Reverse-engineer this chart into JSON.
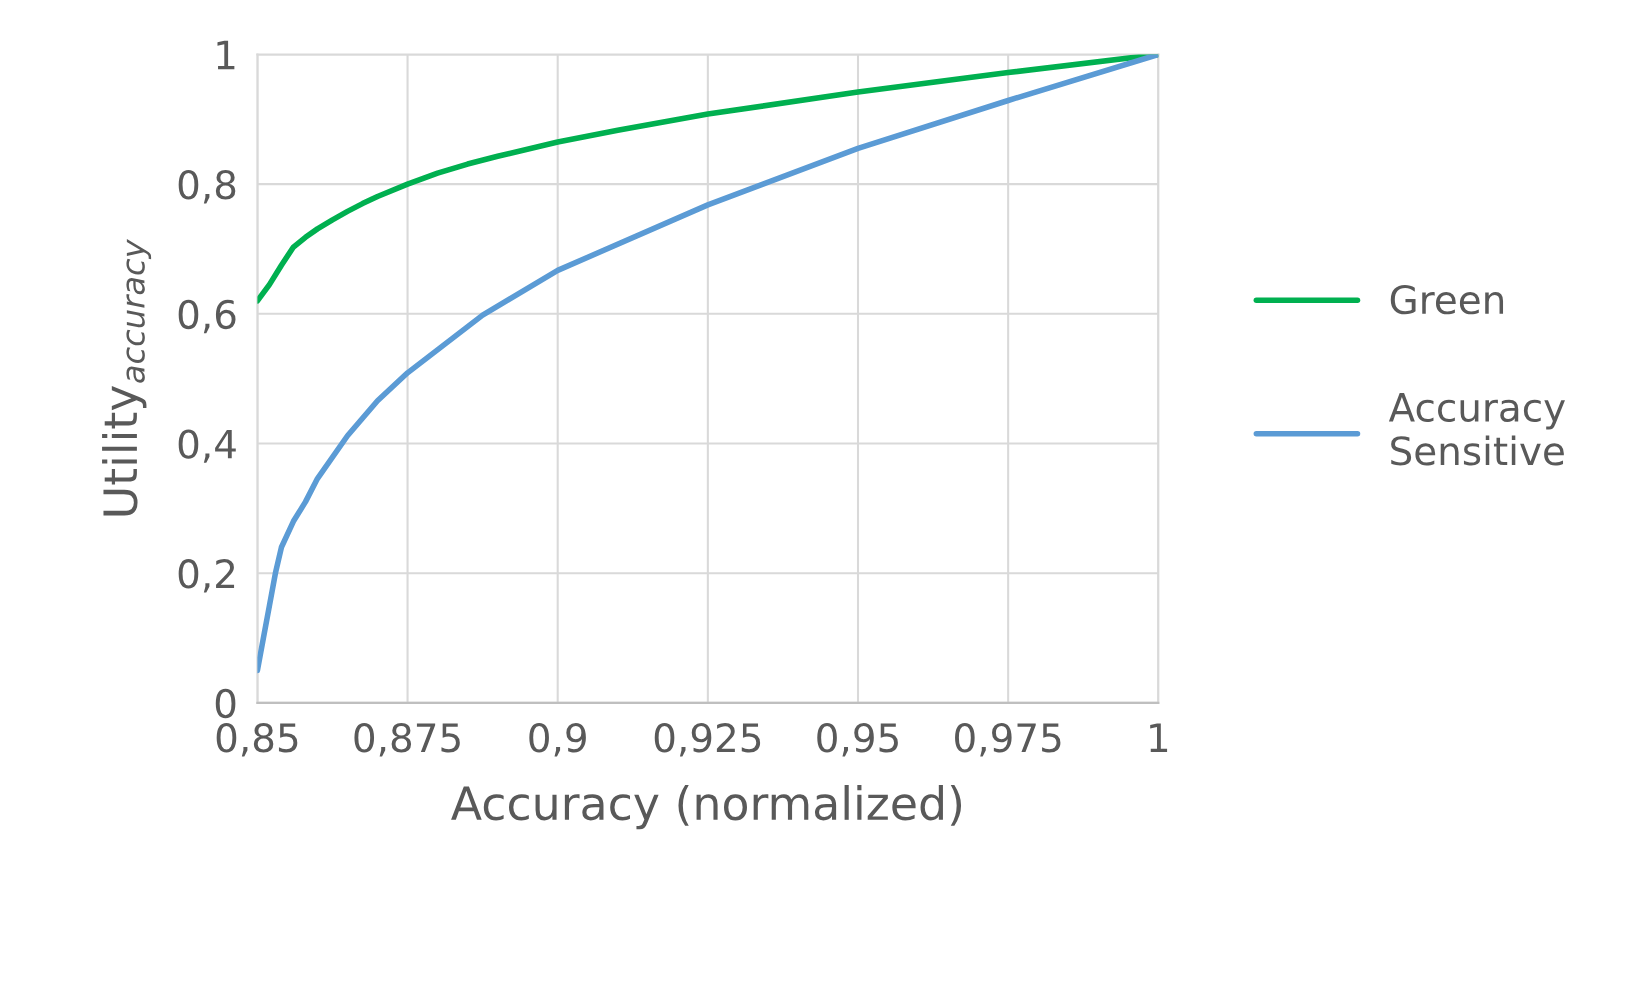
{
  "chart_data": {
    "type": "line",
    "xlabel": "Accuracy (normalized)",
    "ylabel": "Utility$_{accuracy}$",
    "xlim": [
      0.85,
      1
    ],
    "ylim": [
      0,
      1
    ],
    "xticks": [
      {
        "value": 0.85,
        "label": "0,85"
      },
      {
        "value": 0.875,
        "label": "0,875"
      },
      {
        "value": 0.9,
        "label": "0,9"
      },
      {
        "value": 0.925,
        "label": "0,925"
      },
      {
        "value": 0.95,
        "label": "0,95"
      },
      {
        "value": 0.975,
        "label": "0,975"
      },
      1
    ],
    "yticks": [
      0,
      {
        "value": 0.2,
        "label": "0,2"
      },
      {
        "value": 0.4,
        "label": "0,4"
      },
      {
        "value": 0.6,
        "label": "0,6"
      },
      {
        "value": 0.8,
        "label": "0,8"
      },
      1
    ],
    "grid": true,
    "legend": "right",
    "marker": "none",
    "line_style": "solid",
    "series": [
      {
        "name": "Green",
        "color": "#00b050",
        "x": [
          0.85,
          0.852,
          0.854,
          0.856,
          0.858,
          0.86,
          0.8625,
          0.865,
          0.8675,
          0.87,
          0.875,
          0.88,
          0.885,
          0.89,
          0.9,
          0.91,
          0.925,
          0.95,
          0.975,
          1.0
        ],
        "values": [
          0.62,
          0.645,
          0.675,
          0.703,
          0.718,
          0.731,
          0.745,
          0.758,
          0.77,
          0.781,
          0.8,
          0.817,
          0.831,
          0.843,
          0.865,
          0.883,
          0.908,
          0.942,
          0.972,
          1.0
        ]
      },
      {
        "name": "Accuracy\nSensitive",
        "color": "#5b9bd5",
        "x": [
          0.85,
          0.851,
          0.852,
          0.853,
          0.854,
          0.856,
          0.858,
          0.86,
          0.865,
          0.87,
          0.875,
          0.8875,
          0.9,
          0.925,
          0.95,
          0.975,
          1.0
        ],
        "values": [
          0.05,
          0.1,
          0.15,
          0.2,
          0.24,
          0.28,
          0.31,
          0.346,
          0.412,
          0.466,
          0.509,
          0.598,
          0.667,
          0.768,
          0.855,
          0.929,
          1.0
        ]
      }
    ]
  }
}
